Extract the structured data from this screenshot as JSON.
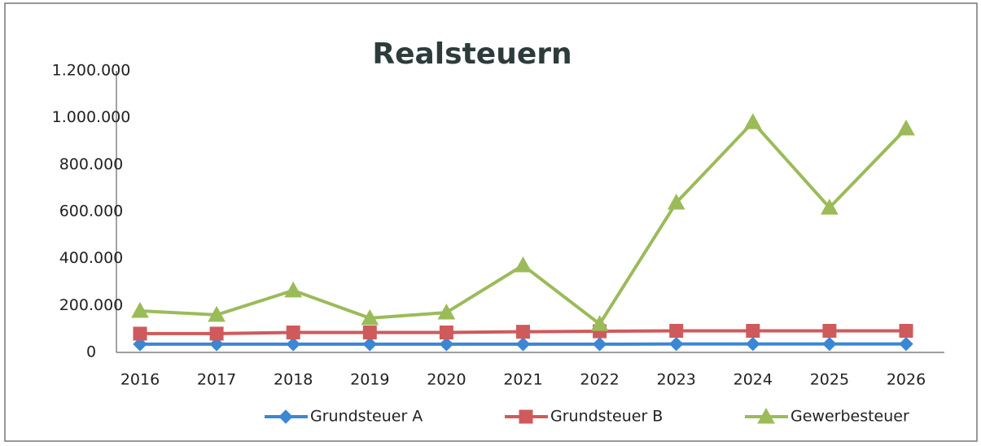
{
  "chart_data": {
    "type": "line",
    "title": "Realsteuern",
    "categories": [
      "2016",
      "2017",
      "2018",
      "2019",
      "2020",
      "2021",
      "2022",
      "2023",
      "2024",
      "2025",
      "2026"
    ],
    "series": [
      {
        "name": "Grundsteuer A",
        "color": "#3b87d4",
        "marker": "diamond",
        "values": [
          35000,
          35000,
          35000,
          35000,
          35000,
          35000,
          35000,
          36000,
          36000,
          36000,
          36000
        ]
      },
      {
        "name": "Grundsteuer B",
        "color": "#cf5a5c",
        "marker": "square",
        "values": [
          80000,
          80000,
          85000,
          85000,
          85000,
          88000,
          90000,
          92000,
          92000,
          92000,
          92000
        ]
      },
      {
        "name": "Gewerbesteuer",
        "color": "#9bbb59",
        "marker": "triangle",
        "values": [
          177000,
          160000,
          264000,
          146000,
          170000,
          371000,
          121000,
          638000,
          981000,
          617000,
          954000
        ]
      }
    ],
    "ylim": [
      0,
      1200000
    ],
    "yticks": [
      0,
      {
        "value": 200000,
        "label": "200.000"
      },
      {
        "value": 400000,
        "label": "400.000"
      },
      {
        "value": 600000,
        "label": "600.000"
      },
      {
        "value": 800000,
        "label": "800.000"
      },
      {
        "value": 1000000,
        "label": "1.000.000"
      },
      {
        "value": 1200000,
        "label": "1.200.000"
      }
    ],
    "grid": false,
    "legend": "bottom"
  }
}
